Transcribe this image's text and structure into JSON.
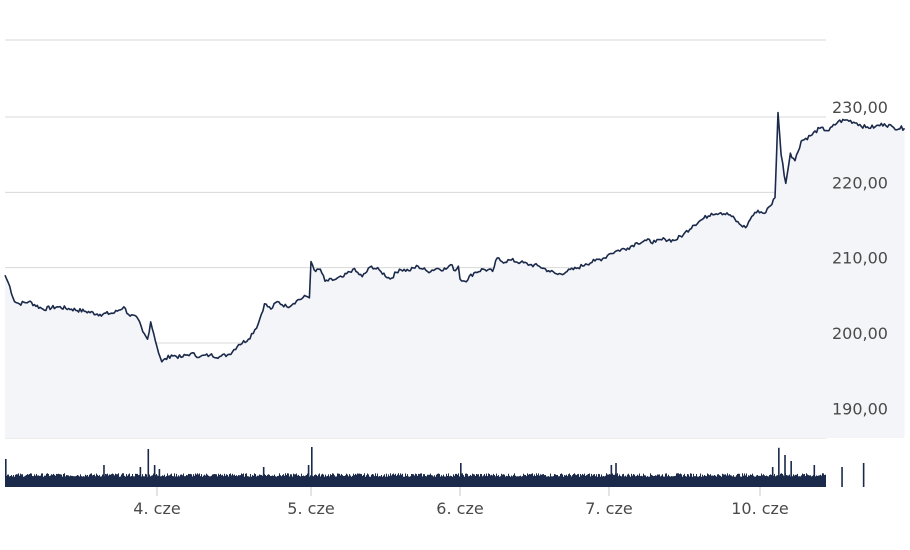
{
  "chart_data": [
    {
      "type": "area",
      "title": "",
      "xlabel": "",
      "ylabel": "",
      "x_ticks": [
        "4. cze",
        "5. cze",
        "6. cze",
        "7. cze",
        "10. cze"
      ],
      "y_ticks": [
        "190,00",
        "200,00",
        "210,00",
        "220,00",
        "230,00"
      ],
      "ylim": [
        188,
        234
      ],
      "grid": true,
      "legend": "none",
      "line_color": "#1b2a4a",
      "fill_color": "#f4f5f8",
      "points": [
        [
          "03 09:00",
          209
        ],
        [
          "03 09:15",
          207.5
        ],
        [
          "03 09:30",
          205.5
        ],
        [
          "03 09:45",
          205.2
        ],
        [
          "03 10:15",
          205.5
        ],
        [
          "03 11:00",
          204.5
        ],
        [
          "03 11:45",
          204.8
        ],
        [
          "03 12:30",
          204.5
        ],
        [
          "03 13:15",
          204.2
        ],
        [
          "03 14:00",
          203.8
        ],
        [
          "03 14:45",
          204
        ],
        [
          "03 15:15",
          204.8
        ],
        [
          "03 15:30",
          203.8
        ],
        [
          "03 16:00",
          203.2
        ],
        [
          "03 16:15",
          201.5
        ],
        [
          "03 16:30",
          200.5
        ],
        [
          "03 16:40",
          202.8
        ],
        [
          "03 16:50",
          201.2
        ],
        [
          "04 09:00",
          199.5
        ],
        [
          "04 09:15",
          197.5
        ],
        [
          "04 09:45",
          198.4
        ],
        [
          "04 10:15",
          198.1
        ],
        [
          "04 10:45",
          198.6
        ],
        [
          "04 11:15",
          198.2
        ],
        [
          "04 11:45",
          198.4
        ],
        [
          "04 12:15",
          198.2
        ],
        [
          "04 12:45",
          198.5
        ],
        [
          "04 13:15",
          199.8
        ],
        [
          "04 13:45",
          200.5
        ],
        [
          "04 14:15",
          202.5
        ],
        [
          "04 14:35",
          205.2
        ],
        [
          "04 14:55",
          204.5
        ],
        [
          "04 15:15",
          205.5
        ],
        [
          "04 15:45",
          204.8
        ],
        [
          "04 16:15",
          205.6
        ],
        [
          "04 16:45",
          206.2
        ],
        [
          "04 16:55",
          206
        ],
        [
          "05 09:00",
          210.8
        ],
        [
          "05 09:15",
          209.5
        ],
        [
          "05 09:30",
          209.8
        ],
        [
          "05 09:45",
          208.2
        ],
        [
          "05 10:15",
          208.4
        ],
        [
          "05 10:45",
          208.8
        ],
        [
          "05 11:15",
          209.8
        ],
        [
          "05 11:45",
          208.8
        ],
        [
          "05 12:15",
          210.2
        ],
        [
          "05 12:45",
          209.5
        ],
        [
          "05 13:15",
          208.5
        ],
        [
          "05 13:45",
          209.8
        ],
        [
          "05 14:15",
          209.6
        ],
        [
          "05 14:45",
          210.2
        ],
        [
          "05 15:15",
          209.5
        ],
        [
          "05 15:45",
          209.9
        ],
        [
          "05 16:15",
          209.8
        ],
        [
          "05 16:30",
          210.4
        ],
        [
          "05 16:45",
          209.6
        ],
        [
          "05 16:55",
          210.2
        ],
        [
          "06 09:00",
          208.5
        ],
        [
          "06 09:15",
          208.2
        ],
        [
          "06 09:45",
          209.3
        ],
        [
          "06 10:15",
          209.8
        ],
        [
          "06 10:45",
          209.5
        ],
        [
          "06 11:00",
          211.3
        ],
        [
          "06 11:15",
          210.8
        ],
        [
          "06 11:45",
          211
        ],
        [
          "06 12:15",
          210.7
        ],
        [
          "06 12:45",
          210.4
        ],
        [
          "06 13:15",
          210.2
        ],
        [
          "06 13:45",
          209.6
        ],
        [
          "06 14:15",
          209.1
        ],
        [
          "06 14:45",
          209.5
        ],
        [
          "06 15:15",
          209.9
        ],
        [
          "06 15:45",
          210.5
        ],
        [
          "06 16:15",
          210.9
        ],
        [
          "06 16:45",
          211.3
        ],
        [
          "06 16:55",
          211.6
        ],
        [
          "07 09:00",
          211.8
        ],
        [
          "07 09:30",
          212.3
        ],
        [
          "07 10:00",
          212.6
        ],
        [
          "07 10:30",
          213.3
        ],
        [
          "07 11:00",
          213.6
        ],
        [
          "07 11:30",
          213.4
        ],
        [
          "07 12:00",
          213.8
        ],
        [
          "07 12:30",
          213.6
        ],
        [
          "07 13:00",
          214.4
        ],
        [
          "07 13:30",
          215.6
        ],
        [
          "07 14:00",
          216.4
        ],
        [
          "07 14:30",
          217.2
        ],
        [
          "07 15:00",
          217.3
        ],
        [
          "07 15:30",
          217
        ],
        [
          "07 16:00",
          215.8
        ],
        [
          "07 16:20",
          215.3
        ],
        [
          "07 16:40",
          216.8
        ],
        [
          "07 16:55",
          217.3
        ],
        [
          "10 09:00",
          217.6
        ],
        [
          "10 09:20",
          217.2
        ],
        [
          "10 09:40",
          218.2
        ],
        [
          "10 09:55",
          219.3
        ],
        [
          "10 10:05",
          230.6
        ],
        [
          "10 10:15",
          225
        ],
        [
          "10 10:30",
          221.2
        ],
        [
          "10 10:45",
          225.2
        ],
        [
          "10 11:00",
          224.2
        ],
        [
          "10 11:20",
          226.8
        ],
        [
          "10 11:50",
          227.5
        ],
        [
          "10 12:20",
          228.5
        ],
        [
          "10 12:50",
          228.2
        ],
        [
          "10 13:20",
          229.4
        ],
        [
          "10 13:50",
          229.6
        ],
        [
          "10 14:20",
          229.2
        ],
        [
          "10 14:50",
          228.6
        ],
        [
          "10 15:20",
          228.7
        ],
        [
          "10 15:50",
          229.1
        ],
        [
          "10 16:20",
          228.6
        ],
        [
          "10 16:55",
          228.5
        ]
      ]
    },
    {
      "type": "bar",
      "title": "",
      "xlabel": "",
      "ylabel": "",
      "y_axis_labels_shown": false,
      "bar_color": "#1b2a4a",
      "baseline_level": 0.3,
      "spikes": [
        [
          "03 09:00",
          0.7
        ],
        [
          "03 14:10",
          0.55
        ],
        [
          "03 16:05",
          0.5
        ],
        [
          "03 16:30",
          0.95
        ],
        [
          "03 16:50",
          0.55
        ],
        [
          "04 09:05",
          0.45
        ],
        [
          "04 14:30",
          0.5
        ],
        [
          "04 16:50",
          0.55
        ],
        [
          "05 09:00",
          1.0
        ],
        [
          "06 09:00",
          0.6
        ],
        [
          "07 09:05",
          0.55
        ],
        [
          "07 09:20",
          0.6
        ],
        [
          "10 09:45",
          0.5
        ],
        [
          "10 10:05",
          0.98
        ],
        [
          "10 10:25",
          0.8
        ],
        [
          "10 10:45",
          0.65
        ],
        [
          "10 12:00",
          0.55
        ],
        [
          "10 13:30",
          0.5
        ],
        [
          "10 14:40",
          0.6
        ]
      ]
    }
  ]
}
